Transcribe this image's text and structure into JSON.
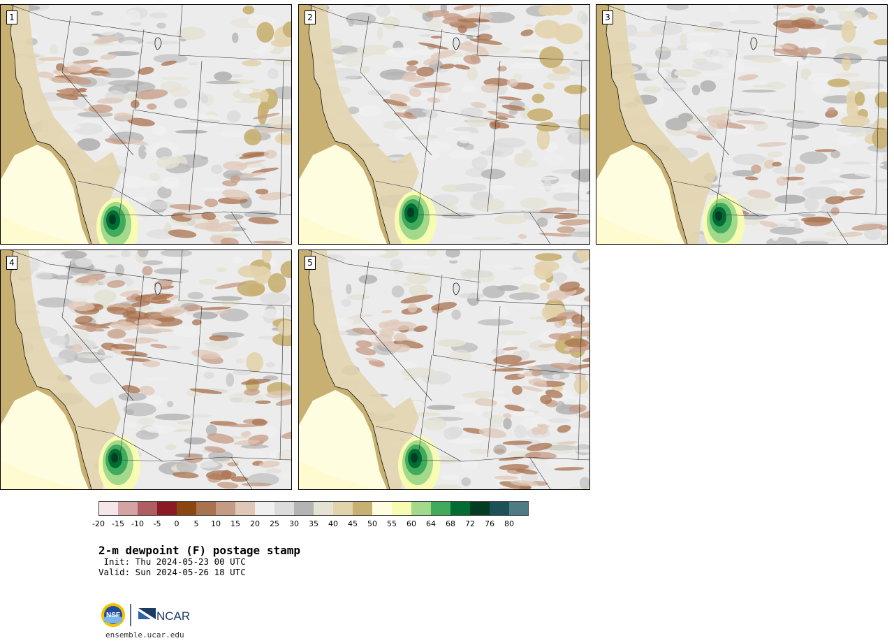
{
  "panels": [
    {
      "label": "1"
    },
    {
      "label": "2"
    },
    {
      "label": "3"
    },
    {
      "label": "4"
    },
    {
      "label": "5"
    }
  ],
  "legend": {
    "bins": [
      {
        "color": "#f5e6e8"
      },
      {
        "color": "#d6a3a5"
      },
      {
        "color": "#b05e63"
      },
      {
        "color": "#8b1a24"
      },
      {
        "color": "#8a4511"
      },
      {
        "color": "#a9734f"
      },
      {
        "color": "#c59b84"
      },
      {
        "color": "#e0c8b8"
      },
      {
        "color": "#f0f0f0"
      },
      {
        "color": "#dcdcdc"
      },
      {
        "color": "#b4b4b4"
      },
      {
        "color": "#e4e2d4"
      },
      {
        "color": "#e3d3ad"
      },
      {
        "color": "#c8b072"
      },
      {
        "color": "#fffde0"
      },
      {
        "color": "#f8fbb2"
      },
      {
        "color": "#a3d98b"
      },
      {
        "color": "#41ab5d"
      },
      {
        "color": "#006d32"
      },
      {
        "color": "#003d22"
      },
      {
        "color": "#1d5158"
      },
      {
        "color": "#4e7c84"
      }
    ],
    "ticks": [
      "-20",
      "-15",
      "-10",
      "-5",
      "0",
      "5",
      "10",
      "15",
      "20",
      "25",
      "30",
      "35",
      "40",
      "45",
      "50",
      "55",
      "60",
      "64",
      "68",
      "72",
      "76",
      "80"
    ]
  },
  "title": "2-m dewpoint (F) postage stamp",
  "init": " Init: Thu 2024-05-23 00 UTC",
  "valid": "Valid: Sun 2024-05-26 18 UTC",
  "logo": {
    "left_text": "NSF",
    "right_text": "NCAR"
  },
  "url": "ensemble.ucar.edu"
}
